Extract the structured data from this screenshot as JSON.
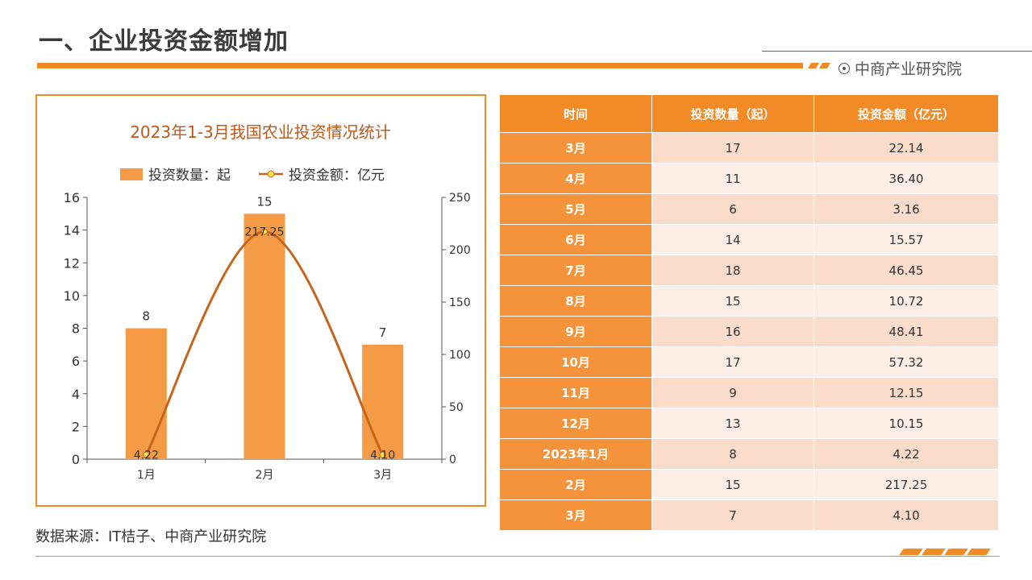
{
  "page": {
    "title": "一、企业投资金额增加",
    "brand": "中商产业研究院",
    "source": "数据来源：IT桔子、中商产业研究院"
  },
  "colors": {
    "accent": "#f28a26",
    "bar": "#f59a45",
    "line": "#c8641a",
    "marker": "#ffe44d"
  },
  "chart_data": {
    "type": "bar",
    "title": "2023年1-3月我国农业投资情况统计",
    "categories": [
      "1月",
      "2月",
      "3月"
    ],
    "series": [
      {
        "name": "投资数量：起",
        "type": "bar",
        "axis": "left",
        "values": [
          8,
          15,
          7
        ]
      },
      {
        "name": "投资金额：亿元",
        "type": "line",
        "axis": "right",
        "values": [
          4.22,
          217.25,
          4.1
        ]
      }
    ],
    "ylim_left": [
      0,
      16
    ],
    "yticks_left": [
      0,
      2,
      4,
      6,
      8,
      10,
      12,
      14,
      16
    ],
    "ylim_right": [
      0,
      250
    ],
    "yticks_right": [
      0,
      50,
      100,
      150,
      200,
      250
    ],
    "legend": "top",
    "grid": false
  },
  "table": {
    "headers": [
      "时间",
      "投资数量（起）",
      "投资金额（亿元）"
    ],
    "rows": [
      [
        "3月",
        "17",
        "22.14"
      ],
      [
        "4月",
        "11",
        "36.40"
      ],
      [
        "5月",
        "6",
        "3.16"
      ],
      [
        "6月",
        "14",
        "15.57"
      ],
      [
        "7月",
        "18",
        "46.45"
      ],
      [
        "8月",
        "15",
        "10.72"
      ],
      [
        "9月",
        "16",
        "48.41"
      ],
      [
        "10月",
        "17",
        "57.32"
      ],
      [
        "11月",
        "9",
        "12.15"
      ],
      [
        "12月",
        "13",
        "10.15"
      ],
      [
        "2023年1月",
        "8",
        "4.22"
      ],
      [
        "2月",
        "15",
        "217.25"
      ],
      [
        "3月",
        "7",
        "4.10"
      ]
    ]
  }
}
